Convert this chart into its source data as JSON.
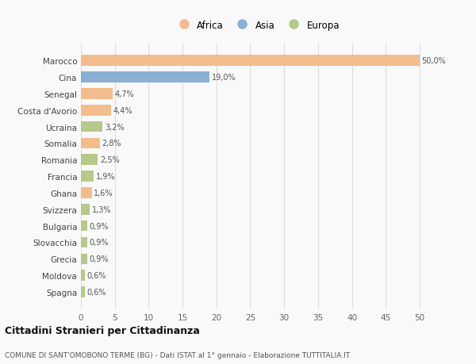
{
  "countries": [
    "Marocco",
    "Cina",
    "Senegal",
    "Costa d'Avorio",
    "Ucraina",
    "Somalia",
    "Romania",
    "Francia",
    "Ghana",
    "Svizzera",
    "Bulgaria",
    "Slovacchia",
    "Grecia",
    "Moldova",
    "Spagna"
  ],
  "values": [
    50.0,
    19.0,
    4.7,
    4.4,
    3.2,
    2.8,
    2.5,
    1.9,
    1.6,
    1.3,
    0.9,
    0.9,
    0.9,
    0.6,
    0.6
  ],
  "categories": [
    "Africa",
    "Asia",
    "Africa",
    "Africa",
    "Europa",
    "Africa",
    "Europa",
    "Europa",
    "Africa",
    "Europa",
    "Europa",
    "Europa",
    "Europa",
    "Europa",
    "Europa"
  ],
  "colors": {
    "Africa": "#F2BC8D",
    "Asia": "#8BAFD4",
    "Europa": "#B5C98A"
  },
  "labels": [
    "50,0%",
    "19,0%",
    "4,7%",
    "4,4%",
    "3,2%",
    "2,8%",
    "2,5%",
    "1,9%",
    "1,6%",
    "1,3%",
    "0,9%",
    "0,9%",
    "0,9%",
    "0,6%",
    "0,6%"
  ],
  "xlim": [
    0,
    52
  ],
  "xticks": [
    0,
    5,
    10,
    15,
    20,
    25,
    30,
    35,
    40,
    45,
    50
  ],
  "title": "Cittadini Stranieri per Cittadinanza",
  "subtitle": "COMUNE DI SANT'OMOBONO TERME (BG) - Dati ISTAT al 1° gennaio - Elaborazione TUTTITALIA.IT",
  "legend_labels": [
    "Africa",
    "Asia",
    "Europa"
  ],
  "background_color": "#f9f9f9",
  "bar_height": 0.65,
  "grid_color": "#dddddd"
}
